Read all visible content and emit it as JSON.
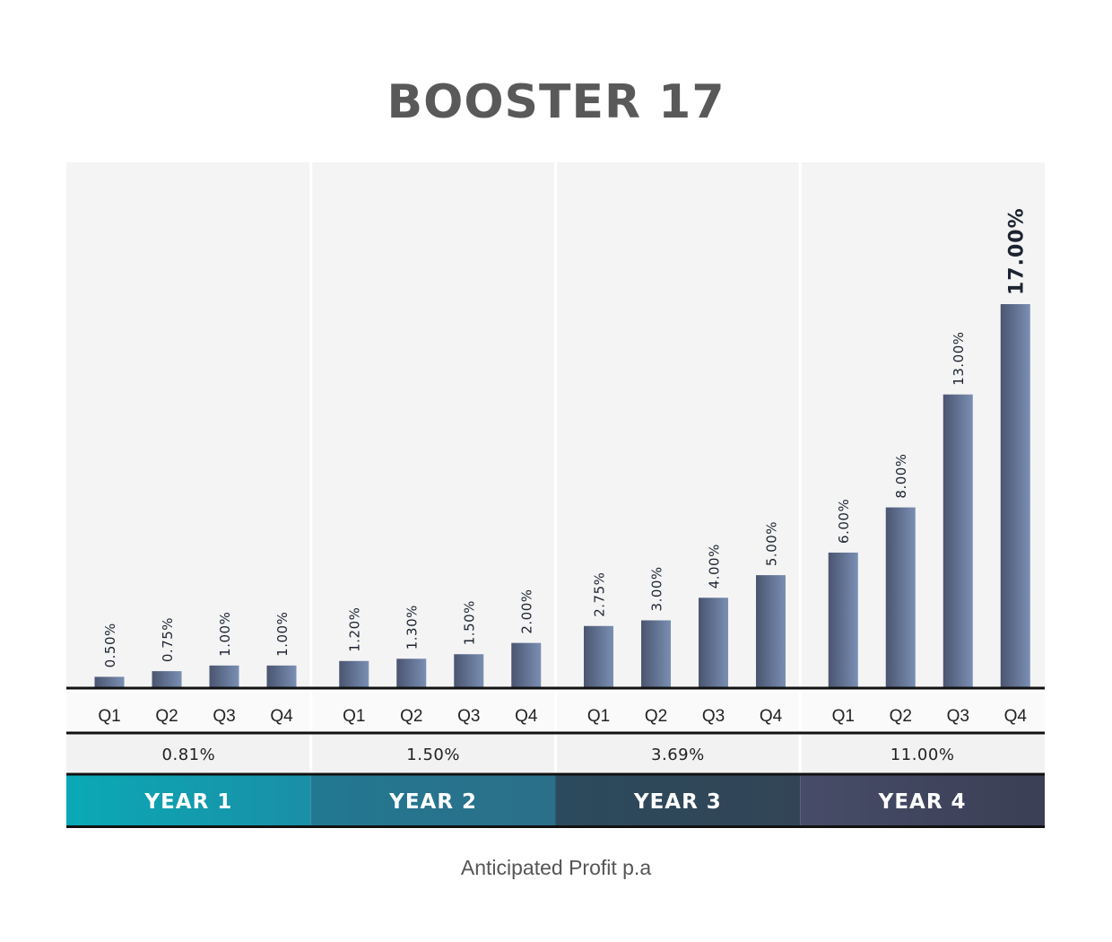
{
  "chart_data": {
    "type": "bar",
    "title": "BOOSTER 17",
    "xlabel": "Anticipated Profit p.a",
    "ylabel": "",
    "ylim": [
      0,
      17
    ],
    "grid": false,
    "groups": [
      {
        "label": "YEAR 1",
        "average": "0.81%",
        "color": [
          "#0aa9b6",
          "#1a8fa6"
        ],
        "categories": [
          "Q1",
          "Q2",
          "Q3",
          "Q4"
        ],
        "values": [
          0.5,
          0.75,
          1.0,
          1.0
        ],
        "value_labels": [
          "0.50%",
          "0.75%",
          "1.00%",
          "1.00%"
        ]
      },
      {
        "label": "YEAR 2",
        "average": "1.50%",
        "color": [
          "#227891",
          "#2b6f8a"
        ],
        "categories": [
          "Q1",
          "Q2",
          "Q3",
          "Q4"
        ],
        "values": [
          1.2,
          1.3,
          1.5,
          2.0
        ],
        "value_labels": [
          "1.20%",
          "1.30%",
          "1.50%",
          "2.00%"
        ]
      },
      {
        "label": "YEAR 3",
        "average": "3.69%",
        "color": [
          "#2b4a5d",
          "#324556"
        ],
        "categories": [
          "Q1",
          "Q2",
          "Q3",
          "Q4"
        ],
        "values": [
          2.75,
          3.0,
          4.0,
          5.0
        ],
        "value_labels": [
          "2.75%",
          "3.00%",
          "4.00%",
          "5.00%"
        ]
      },
      {
        "label": "YEAR 4",
        "average": "11.00%",
        "color": [
          "#474c68",
          "#3a3f55"
        ],
        "categories": [
          "Q1",
          "Q2",
          "Q3",
          "Q4"
        ],
        "values": [
          6.0,
          8.0,
          13.0,
          17.0
        ],
        "value_labels": [
          "6.00%",
          "8.00%",
          "13.00%",
          "17.00%"
        ]
      }
    ],
    "highlight": {
      "group": 3,
      "index": 3
    },
    "colors": {
      "bar_dark": "#4a5570",
      "bar_light": "#7a8fb4",
      "panel": "#f4f4f4",
      "axis": "#111111"
    }
  }
}
